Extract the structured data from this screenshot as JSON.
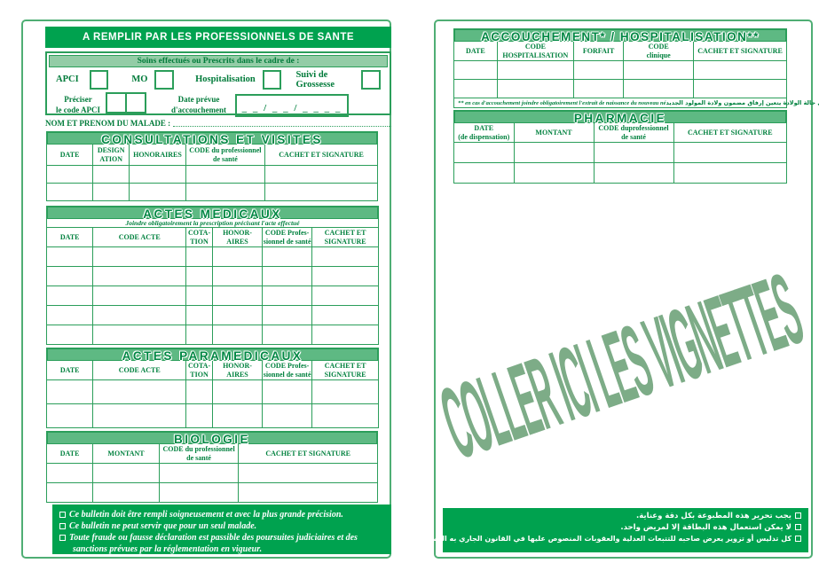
{
  "colors": {
    "brand_green": "#00A24F",
    "band_green": "#5eb983",
    "light_band_green": "#93cca6",
    "border_green": "#2b9e5a",
    "text_green": "#00813E",
    "watermark_green": "#7dac87"
  },
  "p1": {
    "header": "A REMPLIR PAR LES PROFESSIONNELS DE SANTE",
    "soins": {
      "title": "Soins effectués ou Prescrits dans le cadre de :",
      "checkboxes": [
        "APCI",
        "MO",
        "Hospitalisation",
        "Suivi de  Grossesse"
      ],
      "apci_label": [
        "Préciser",
        "le code APCI"
      ],
      "date_label": [
        "Date prévue",
        "d'accouchement"
      ],
      "date_placeholder": "_ _ / _ _ / _ _ _ _"
    },
    "patient_label": "NOM ET PRENOM DU MALADE :",
    "consultations": {
      "title": "CONSULTATIONS ET VISITES",
      "columns": [
        [
          "DATE"
        ],
        [
          "DESIGN",
          "ATION"
        ],
        [
          "HONORAIRES"
        ],
        [
          "CODE du professionnel",
          "de santé"
        ],
        [
          "CACHET ET SIGNATURE"
        ]
      ],
      "rows": 2
    },
    "actes_medicaux": {
      "title": "ACTES MEDICAUX",
      "subtitle": "Joindre obligatoirement la prescription précisant l'acte effectué",
      "columns": [
        [
          "DATE"
        ],
        [
          "CODE ACTE"
        ],
        [
          "COTA-",
          "TION"
        ],
        [
          "HONOR-",
          "AIRES"
        ],
        [
          "CODE Profes-",
          "sionnel de santé"
        ],
        [
          "CACHET ET",
          "SIGNATURE"
        ]
      ],
      "rows": 5
    },
    "actes_paramedicaux": {
      "title": "ACTES PARAMEDICAUX",
      "columns": [
        [
          "DATE"
        ],
        [
          "CODE ACTE"
        ],
        [
          "COTA-",
          "TION"
        ],
        [
          "HONOR-",
          "AIRES"
        ],
        [
          "CODE Profes-",
          "sionnel de santé"
        ],
        [
          "CACHET ET",
          "SIGNATURE"
        ]
      ],
      "rows": 2
    },
    "biologie": {
      "title": "BIOLOGIE",
      "columns": [
        [
          "DATE"
        ],
        [
          "MONTANT"
        ],
        [
          "CODE du professionnel",
          "de santé"
        ],
        [
          "CACHET ET SIGNATURE"
        ]
      ],
      "rows": 2
    },
    "footer_lines": [
      "Ce bulletin doit être rempli soigneusement et avec la plus grande précision.",
      "Ce bulletin ne peut servir que pour un seul malade.",
      "Toute fraude ou fausse déclaration est passible des poursuites judiciaires et des sanctions prévues par la réglementation en vigueur."
    ]
  },
  "p2": {
    "accouchement": {
      "title": "ACCOUCHEMENT* / HOSPITALISATION**",
      "columns": [
        [
          "DATE"
        ],
        [
          "CODE",
          "HOSPITALISATION"
        ],
        [
          "FORFAIT"
        ],
        [
          "CODE",
          "clinique"
        ],
        [
          "CACHET ET SIGNATURE"
        ]
      ],
      "rows": 2,
      "footnote_fr": "** en cas d'accouchement joindre obligatoirement l'extrait de naissance du nouveau né",
      "footnote_ar": "** في حالة الولادة يتعين إرفاق مضمون ولادة المولود الجديد"
    },
    "pharmacie": {
      "title": "PHARMACIE",
      "columns": [
        [
          "DATE",
          "(de dispensation)"
        ],
        [
          "MONTANT"
        ],
        [
          "CODE duprofessionnel",
          "de santé"
        ],
        [
          "CACHET ET SIGNATURE"
        ]
      ],
      "rows": 2
    },
    "watermark": "COLLER ICI LES VIGNETTES",
    "footer_lines_ar": [
      "يجب تحرير هذه المطبوعة بكل دقة وعناية.",
      "لا يمكن استعمال هذه البطاقة إلا لمريض واحد.",
      "كل تدليس أو تزوير يعرض صاحبه للتتبعات العدلية والعقوبات المنصوص عليها في القانون الجاري به العمل."
    ]
  }
}
